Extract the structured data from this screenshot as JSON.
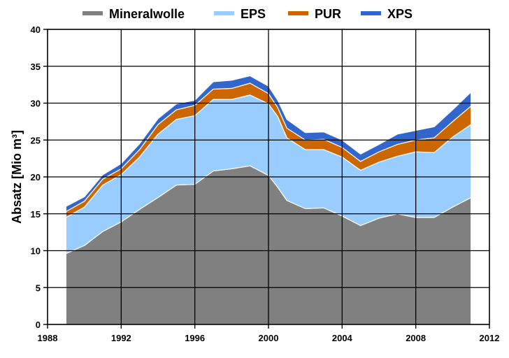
{
  "chart_data": {
    "type": "area",
    "stacked": true,
    "ylabel": "Absatz [Mio m³]",
    "xlim": [
      1988,
      2012
    ],
    "ylim": [
      0,
      40
    ],
    "xticks": [
      1988,
      1992,
      1996,
      2000,
      2004,
      2008,
      2012
    ],
    "yticks": [
      0,
      5,
      10,
      15,
      20,
      25,
      30,
      35,
      40
    ],
    "grid": true,
    "legend_position": "top",
    "x": [
      1989,
      1990,
      1991,
      1992,
      1993,
      1994,
      1995,
      1996,
      1997,
      1998,
      1999,
      2000,
      2000.5,
      2001,
      2002,
      2003,
      2004,
      2005,
      2006,
      2007,
      2008,
      2009,
      2010,
      2011
    ],
    "series": [
      {
        "name": "Mineralwolle",
        "color": "#808080",
        "values": [
          9.6,
          10.7,
          12.6,
          13.9,
          15.6,
          17.2,
          18.9,
          19.0,
          20.8,
          21.1,
          21.5,
          20.2,
          18.6,
          16.8,
          15.7,
          15.8,
          14.7,
          13.4,
          14.4,
          15.0,
          14.5,
          14.5,
          15.9,
          17.2
        ]
      },
      {
        "name": "EPS",
        "color": "#99ccff",
        "values": [
          4.9,
          5.2,
          6.3,
          6.4,
          7.1,
          8.6,
          8.9,
          9.3,
          9.7,
          9.4,
          9.6,
          9.7,
          9.6,
          8.5,
          8.0,
          7.9,
          8.0,
          7.5,
          7.6,
          7.8,
          8.9,
          8.8,
          9.5,
          9.9
        ]
      },
      {
        "name": "PUR",
        "color": "#cc6600",
        "values": [
          0.8,
          0.8,
          0.8,
          0.8,
          1.0,
          1.3,
          1.3,
          1.4,
          1.4,
          1.5,
          1.6,
          1.4,
          1.2,
          1.3,
          1.3,
          1.4,
          1.3,
          1.2,
          1.4,
          1.6,
          1.6,
          2.0,
          2.1,
          2.5
        ]
      },
      {
        "name": "XPS",
        "color": "#3366cc",
        "values": [
          0.7,
          0.6,
          0.6,
          0.7,
          0.8,
          0.8,
          0.8,
          0.7,
          1.0,
          1.1,
          1.0,
          1.0,
          1.0,
          1.2,
          1.0,
          1.0,
          1.0,
          1.0,
          1.0,
          1.4,
          1.3,
          1.5,
          1.6,
          1.9
        ]
      }
    ]
  }
}
